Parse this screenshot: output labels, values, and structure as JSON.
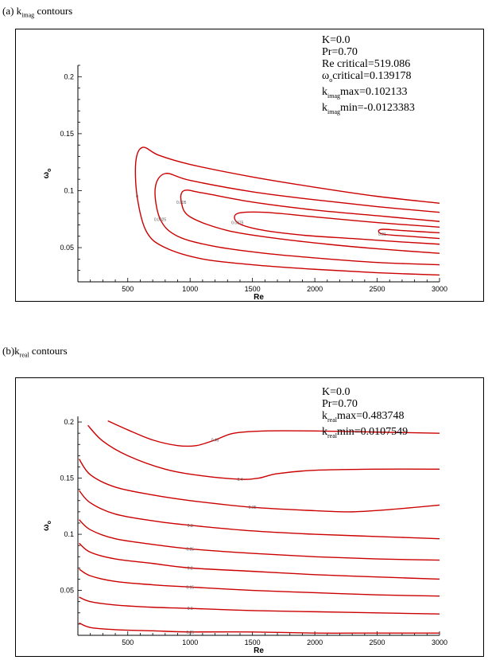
{
  "panel_a": {
    "caption_prefix": "(a) k",
    "caption_sub": "imag",
    "caption_suffix": " contours",
    "annotation": {
      "line1": "K=0.0",
      "line2": "Pr=0.70",
      "line3": "Re critical=519.086",
      "line4_pre": "ω",
      "line4_sub": "o",
      "line4_post": "critical=0.139178",
      "line5_pre": "k",
      "line5_sub": "imag",
      "line5_post": "max=0.102133",
      "line6_pre": "k",
      "line6_sub": "imag",
      "line6_post": "min=-0.0123383"
    }
  },
  "panel_b": {
    "caption_prefix": "(b)k",
    "caption_sub": "real",
    "caption_suffix": " contours",
    "annotation": {
      "line1": "K=0.0",
      "line2": "Pr=0.70",
      "line3_pre": "k",
      "line3_sub": "real",
      "line3_post": "max=0.483748",
      "line4_pre": "k",
      "line4_sub": "real",
      "line4_post": "min=0.0107549"
    }
  },
  "chart_data": [
    {
      "type": "line",
      "subtype": "contour",
      "xlabel": "Re",
      "ylabel": "ω",
      "ylabel_sub": "o",
      "xlim": [
        100,
        3000
      ],
      "ylim": [
        0.02,
        0.21
      ],
      "xticks": [
        500,
        1000,
        1500,
        2000,
        2500,
        3000
      ],
      "yticks": [
        0.05,
        0.1,
        0.15,
        0.2
      ],
      "ytick_labels": [
        "0.05",
        "0.1",
        "0.15",
        "0.2"
      ],
      "line_color": "#cc0000",
      "series": [
        {
          "label": "0",
          "x": [
            3000,
            2500,
            2000,
            1500,
            1000,
            750,
            620,
            565,
            575,
            650,
            800,
            1100,
            1500,
            2000,
            2500,
            3000
          ],
          "y": [
            0.089,
            0.095,
            0.103,
            0.112,
            0.123,
            0.131,
            0.138,
            0.126,
            0.095,
            0.064,
            0.05,
            0.04,
            0.035,
            0.031,
            0.028,
            0.026
          ]
        },
        {
          "label": "0.0025",
          "x": [
            3000,
            2500,
            2000,
            1500,
            1000,
            800,
            720,
            760,
            900,
            1200,
            1600,
            2000,
            2500,
            3000
          ],
          "y": [
            0.081,
            0.086,
            0.092,
            0.099,
            0.109,
            0.115,
            0.102,
            0.075,
            0.06,
            0.051,
            0.045,
            0.041,
            0.037,
            0.035
          ]
        },
        {
          "label": "0.005",
          "x": [
            3000,
            2500,
            2000,
            1500,
            1100,
            950,
            930,
            1000,
            1300,
            1700,
            2100,
            2500,
            3000
          ],
          "y": [
            0.073,
            0.078,
            0.083,
            0.09,
            0.098,
            0.1,
            0.09,
            0.077,
            0.065,
            0.058,
            0.053,
            0.049,
            0.045
          ]
        },
        {
          "label": "0.0075",
          "x": [
            3000,
            2500,
            2000,
            1600,
            1380,
            1380,
            1550,
            1900,
            2300,
            2700,
            3000
          ],
          "y": [
            0.068,
            0.072,
            0.077,
            0.081,
            0.08,
            0.072,
            0.066,
            0.061,
            0.058,
            0.055,
            0.053
          ]
        },
        {
          "label": "0.01",
          "x": [
            3000,
            2700,
            2530,
            2540,
            2750,
            3000
          ],
          "y": [
            0.063,
            0.065,
            0.066,
            0.062,
            0.06,
            0.058
          ]
        }
      ],
      "contour_labels_shown": [
        "0",
        "0.005",
        "0.0075",
        "0.0025",
        "0.01",
        "0",
        "0.012",
        "0"
      ]
    },
    {
      "type": "line",
      "subtype": "contour",
      "xlabel": "Re",
      "ylabel": "ω",
      "ylabel_sub": "o",
      "xlim": [
        100,
        3000
      ],
      "ylim": [
        0.01,
        0.205
      ],
      "xticks": [
        500,
        1000,
        1500,
        2000,
        2500,
        3000
      ],
      "yticks": [
        0.05,
        0.1,
        0.15,
        0.2
      ],
      "ytick_labels": [
        "0.05",
        "0.1",
        "0.15",
        "0.2"
      ],
      "line_color": "#cc0000",
      "series": [
        {
          "label": "0.45",
          "x": [
            340,
            500,
            700,
            900,
            1050,
            1200,
            1350,
            1600,
            2000,
            2500,
            3000
          ],
          "y": [
            0.201,
            0.193,
            0.184,
            0.179,
            0.179,
            0.184,
            0.19,
            0.192,
            0.192,
            0.191,
            0.19
          ]
        },
        {
          "label": "0.4",
          "x": [
            180,
            300,
            500,
            800,
            1100,
            1400,
            1550,
            1700,
            2000,
            2500,
            3000
          ],
          "y": [
            0.197,
            0.183,
            0.17,
            0.158,
            0.152,
            0.149,
            0.15,
            0.154,
            0.157,
            0.158,
            0.158
          ]
        },
        {
          "label": "0.35",
          "x": [
            110,
            200,
            400,
            700,
            1000,
            1500,
            2000,
            2300,
            2600,
            3000
          ],
          "y": [
            0.167,
            0.153,
            0.142,
            0.135,
            0.13,
            0.124,
            0.121,
            0.12,
            0.122,
            0.126
          ]
        },
        {
          "label": "0.3",
          "x": [
            110,
            200,
            400,
            700,
            1000,
            1500,
            2000,
            2500,
            3000
          ],
          "y": [
            0.139,
            0.128,
            0.118,
            0.112,
            0.108,
            0.103,
            0.1,
            0.098,
            0.096
          ]
        },
        {
          "label": "0.25",
          "x": [
            110,
            200,
            400,
            700,
            1000,
            1500,
            2000,
            2500,
            3000
          ],
          "y": [
            0.113,
            0.104,
            0.096,
            0.091,
            0.087,
            0.083,
            0.08,
            0.078,
            0.077
          ]
        },
        {
          "label": "0.2",
          "x": [
            110,
            200,
            400,
            700,
            1000,
            1500,
            2000,
            2500,
            3000
          ],
          "y": [
            0.092,
            0.084,
            0.078,
            0.074,
            0.07,
            0.067,
            0.064,
            0.062,
            0.06
          ]
        },
        {
          "label": "0.15",
          "x": [
            110,
            200,
            400,
            700,
            1000,
            1500,
            2000,
            2500,
            3000
          ],
          "y": [
            0.069,
            0.063,
            0.058,
            0.055,
            0.053,
            0.05,
            0.048,
            0.046,
            0.045
          ]
        },
        {
          "label": "0.1",
          "x": [
            110,
            200,
            400,
            700,
            1000,
            1500,
            2000,
            2500,
            3000
          ],
          "y": [
            0.044,
            0.04,
            0.037,
            0.035,
            0.034,
            0.032,
            0.031,
            0.03,
            0.029
          ]
        },
        {
          "label": "0.05",
          "x": [
            110,
            200,
            400,
            700,
            1000,
            1500,
            2000,
            2500,
            3000
          ],
          "y": [
            0.021,
            0.017,
            0.015,
            0.014,
            0.013,
            0.013,
            0.012,
            0.012,
            0.012
          ]
        }
      ],
      "contour_labels_shown": [
        "0.45",
        "0.4",
        "0.35",
        "0.3",
        "0.25",
        "0.2",
        "0.15",
        "0.1"
      ]
    }
  ]
}
